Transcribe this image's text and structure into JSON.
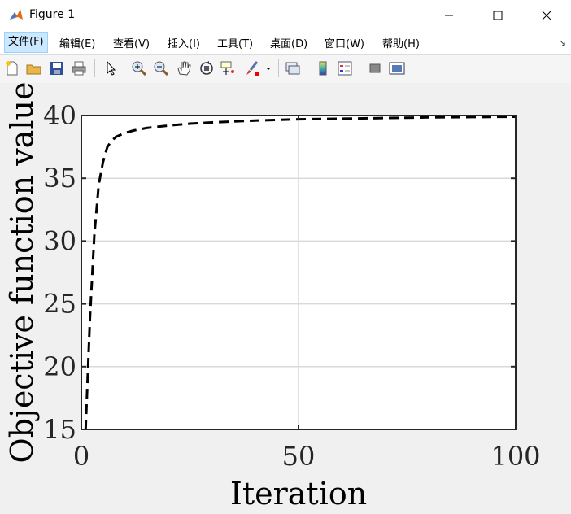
{
  "window": {
    "title": "Figure 1",
    "app_icon": "matlab-icon",
    "controls": [
      "minimize-icon",
      "maximize-icon",
      "close-icon"
    ]
  },
  "menu": [
    {
      "label": "文件(F)",
      "active": true
    },
    {
      "label": "编辑(E)"
    },
    {
      "label": "查看(V)"
    },
    {
      "label": "插入(I)"
    },
    {
      "label": "工具(T)"
    },
    {
      "label": "桌面(D)"
    },
    {
      "label": "窗口(W)"
    },
    {
      "label": "帮助(H)"
    }
  ],
  "menu_corner_icon": "dock-arrow-icon",
  "toolbar": [
    "new-figure-icon",
    "open-file-icon",
    "save-icon",
    "print-icon",
    "select-arrow-icon",
    "zoom-in-icon",
    "zoom-out-icon",
    "pan-hand-icon",
    "rotate-3d-icon",
    "data-cursor-icon",
    "brush-icon",
    "dropdown-arrow-icon",
    "link-plot-icon",
    "colorbar-icon",
    "legend-icon",
    "hide-plot-tools-icon",
    "show-plot-tools-icon"
  ],
  "chart_data": {
    "type": "line",
    "xlabel": "Iteration",
    "ylabel": "Objective function value",
    "xlim": [
      0,
      100
    ],
    "ylim": [
      15,
      40
    ],
    "xticks": [
      0,
      50,
      100
    ],
    "yticks": [
      15,
      20,
      25,
      30,
      35,
      40
    ],
    "grid": true,
    "series": [
      {
        "style": "dashed",
        "color": "#000000",
        "x": [
          1,
          2,
          3,
          4,
          5,
          6,
          7,
          8,
          10,
          12,
          15,
          20,
          25,
          30,
          40,
          50,
          60,
          70,
          80,
          90,
          100
        ],
        "y": [
          15.0,
          24.0,
          30.5,
          34.5,
          36.3,
          37.5,
          38.0,
          38.3,
          38.6,
          38.8,
          39.0,
          39.2,
          39.35,
          39.45,
          39.6,
          39.7,
          39.75,
          39.8,
          39.85,
          39.88,
          39.9
        ]
      }
    ]
  }
}
